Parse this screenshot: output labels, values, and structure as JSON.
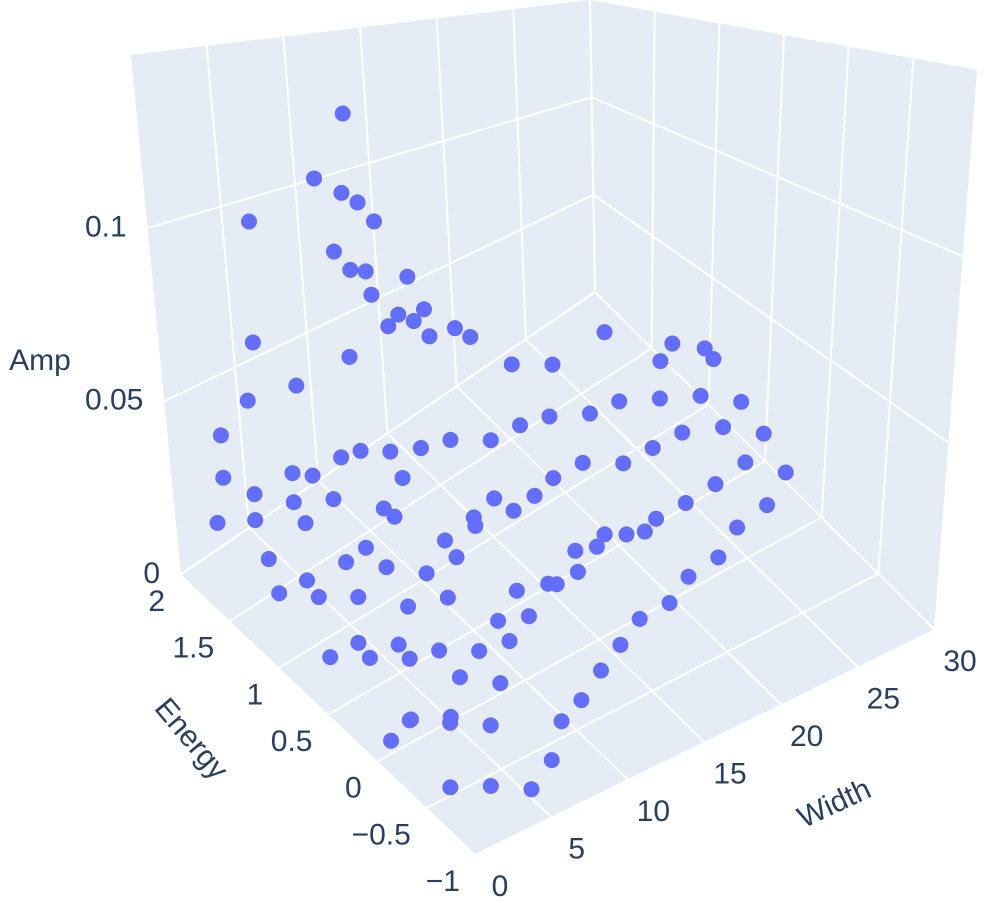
{
  "chart_data": {
    "type": "scatter3d",
    "x_label": "Width",
    "y_label": "Energy",
    "z_label": "Amp",
    "xlim": [
      0,
      30
    ],
    "ylim": [
      -1,
      2
    ],
    "zlim": [
      0,
      0.15
    ],
    "xticks": [
      0,
      5,
      10,
      15,
      20,
      25,
      30
    ],
    "yticks": [
      {
        "value": -1,
        "label": "−1"
      },
      {
        "value": -0.5,
        "label": "−0.5"
      },
      0,
      0.5,
      1,
      1.5,
      2
    ],
    "zticks": [
      0,
      0.05,
      0.1
    ],
    "pane_color": "#e5ecf6",
    "grid_color": "#ffffff",
    "series": [
      {
        "color": "#636efa",
        "x": [
          8,
          7,
          8,
          9,
          4,
          10,
          8,
          9,
          10,
          12,
          11,
          5,
          22,
          25,
          12,
          13,
          13,
          15,
          12,
          27,
          25,
          28,
          20,
          18,
          16,
          14,
          10,
          7,
          5,
          3,
          1,
          1,
          1,
          1,
          1,
          1,
          1,
          1,
          1,
          1,
          3,
          3,
          3,
          3,
          3,
          3,
          3,
          3,
          3,
          3,
          5,
          5,
          5,
          5,
          5,
          5,
          5,
          5,
          5,
          5,
          7,
          7,
          7,
          7,
          7,
          7,
          7,
          7,
          7,
          9,
          9,
          9,
          9,
          9,
          9,
          9,
          9,
          11,
          11,
          11,
          11,
          11,
          11,
          11,
          13,
          13,
          13,
          13,
          13,
          13,
          15,
          15,
          15,
          15,
          15,
          15,
          17,
          17,
          17,
          17,
          17,
          19,
          19,
          19,
          19,
          19,
          21,
          21,
          21,
          21,
          21,
          23,
          23,
          23,
          23,
          25,
          25,
          25,
          25,
          27,
          27,
          27,
          27,
          29,
          29,
          29
        ],
        "y": [
          1.25,
          1.4,
          1.3,
          1.3,
          1.6,
          1.3,
          1.4,
          1.4,
          1.4,
          1.3,
          1.5,
          1.8,
          0.9,
          0.7,
          1.4,
          1.3,
          1.4,
          1.3,
          1.5,
          0.6,
          0.8,
          0.8,
          1.1,
          1.2,
          1.3,
          1.4,
          1.6,
          1.7,
          1.9,
          1.9,
          -0.6,
          -0.2,
          0.3,
          0.8,
          1.3,
          1.7,
          0,
          0.6,
          1.1,
          1.6,
          -0.7,
          -0.3,
          0.2,
          0.7,
          1.2,
          1.6,
          0.1,
          0.5,
          1,
          1.5,
          -0.8,
          -0.4,
          0.1,
          0.6,
          1.1,
          1.5,
          0,
          0.4,
          0.9,
          1.4,
          -0.7,
          -0.2,
          0.3,
          0.8,
          1.3,
          1.6,
          0.2,
          0.7,
          1.1,
          -0.5,
          0,
          0.5,
          1,
          1.4,
          0.3,
          0.8,
          1.2,
          -0.4,
          0.1,
          0.6,
          1.1,
          1.4,
          0.4,
          0.9,
          -0.3,
          0.2,
          0.7,
          1.1,
          0.5,
          0.9,
          -0.2,
          0.2,
          0.6,
          1,
          0.4,
          0.8,
          -0.1,
          0.3,
          0.7,
          1,
          0.5,
          -0.1,
          0.3,
          0.7,
          1,
          0.5,
          0,
          0.3,
          0.6,
          0.9,
          0.4,
          0,
          0.3,
          0.6,
          0.9,
          0.1,
          0.3,
          0.6,
          0.8,
          0.1,
          0.3,
          0.5,
          0.7,
          0.2,
          0.4,
          0.6
        ],
        "z": [
          0.135,
          0.115,
          0.111,
          0.107,
          0.103,
          0.1,
          0.092,
          0.085,
          0.083,
          0.08,
          0.072,
          0.062,
          0.052,
          0.047,
          0.066,
          0.068,
          0.062,
          0.058,
          0.06,
          0.04,
          0.038,
          0.035,
          0.04,
          0.042,
          0.053,
          0.055,
          0.052,
          0.047,
          0.042,
          0.036,
          0.005,
          0.012,
          0.02,
          0.025,
          0.03,
          0.02,
          0.003,
          0.01,
          0.015,
          0.035,
          0.004,
          0.01,
          0.018,
          0.028,
          0.033,
          0.026,
          0.002,
          0.008,
          0.012,
          0.01,
          0.002,
          0.008,
          0.015,
          0.025,
          0.032,
          0.03,
          0.001,
          0.006,
          0.01,
          0.018,
          0.003,
          0.01,
          0.02,
          0.03,
          0.035,
          0.022,
          0.002,
          0.008,
          0.014,
          0.004,
          0.012,
          0.022,
          0.032,
          0.03,
          0.002,
          0.01,
          0.018,
          0.003,
          0.012,
          0.024,
          0.034,
          0.025,
          0.003,
          0.012,
          0.004,
          0.014,
          0.025,
          0.032,
          0.004,
          0.014,
          0.004,
          0.013,
          0.024,
          0.03,
          0.004,
          0.014,
          0.004,
          0.013,
          0.022,
          0.03,
          0.006,
          0.004,
          0.012,
          0.022,
          0.028,
          0.006,
          0.004,
          0.012,
          0.02,
          0.027,
          0.005,
          0.005,
          0.012,
          0.02,
          0.026,
          0.006,
          0.013,
          0.02,
          0.025,
          0.008,
          0.015,
          0.02,
          0.024,
          0.01,
          0.016,
          0.02
        ]
      }
    ]
  }
}
